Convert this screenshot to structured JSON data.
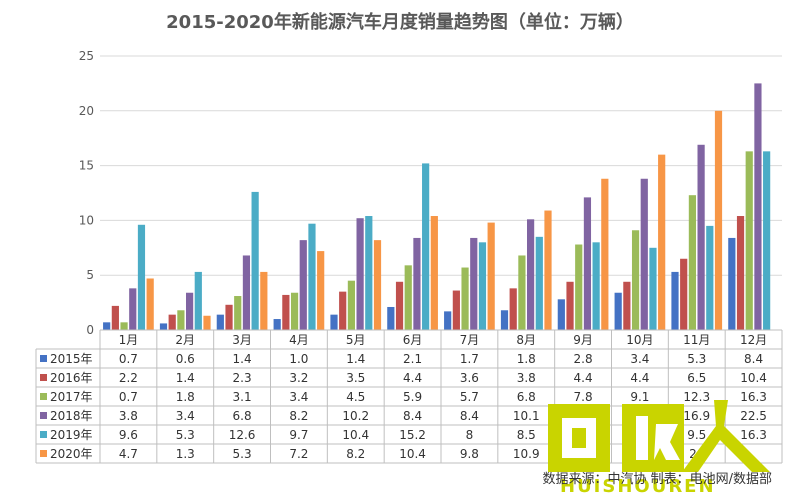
{
  "title": "2015-2020年新能源汽车月度销量趋势图（单位：万辆）",
  "source": "数据来源：中汽协 制表：电池网/数据部",
  "logo_text": "HUISHOUREN",
  "chart_data": {
    "type": "bar",
    "title": "2015-2020年新能源汽车月度销量趋势图（单位：万辆）",
    "xlabel": "",
    "ylabel": "",
    "ylim": [
      0,
      25
    ],
    "yticks": [
      0,
      5,
      10,
      15,
      20,
      25
    ],
    "grid": true,
    "legend": "data-table",
    "categories": [
      "1月",
      "2月",
      "3月",
      "4月",
      "5月",
      "6月",
      "7月",
      "8月",
      "9月",
      "10月",
      "11月",
      "12月"
    ],
    "series": [
      {
        "name": "2015年",
        "color": "#4472c4",
        "values": [
          0.7,
          0.6,
          1.4,
          1.0,
          1.4,
          2.1,
          1.7,
          1.8,
          2.8,
          3.4,
          5.3,
          8.4
        ]
      },
      {
        "name": "2016年",
        "color": "#c0504d",
        "values": [
          2.2,
          1.4,
          2.3,
          3.2,
          3.5,
          4.4,
          3.6,
          3.8,
          4.4,
          4.4,
          6.5,
          10.4
        ]
      },
      {
        "name": "2017年",
        "color": "#9bbb59",
        "values": [
          0.7,
          1.8,
          3.1,
          3.4,
          4.5,
          5.9,
          5.7,
          6.8,
          7.8,
          9.1,
          12.3,
          16.3
        ]
      },
      {
        "name": "2018年",
        "color": "#8064a2",
        "values": [
          3.8,
          3.4,
          6.8,
          8.2,
          10.2,
          8.4,
          8.4,
          10.1,
          12.1,
          13.8,
          16.9,
          22.5
        ]
      },
      {
        "name": "2019年",
        "color": "#4bacc6",
        "values": [
          9.6,
          5.3,
          12.6,
          9.7,
          10.4,
          15.2,
          8,
          8.5,
          8.0,
          7.5,
          9.5,
          16.3
        ]
      },
      {
        "name": "2020年",
        "color": "#f79646",
        "values": [
          4.7,
          1.3,
          5.3,
          7.2,
          8.2,
          10.4,
          9.8,
          10.9,
          13.8,
          16.0,
          20.0,
          null
        ]
      }
    ],
    "table_cells": [
      [
        "0.7",
        "0.6",
        "1.4",
        "1.0",
        "1.4",
        "2.1",
        "1.7",
        "1.8",
        "2.8",
        "3.4",
        "5.3",
        "8.4"
      ],
      [
        "2.2",
        "1.4",
        "2.3",
        "3.2",
        "3.5",
        "4.4",
        "3.6",
        "3.8",
        "4.4",
        "4.4",
        "6.5",
        "10.4"
      ],
      [
        "0.7",
        "1.8",
        "3.1",
        "3.4",
        "4.5",
        "5.9",
        "5.7",
        "6.8",
        "7.8",
        "9.1",
        "12.3",
        "16.3"
      ],
      [
        "3.8",
        "3.4",
        "6.8",
        "8.2",
        "10.2",
        "8.4",
        "8.4",
        "10.1",
        "",
        "",
        "16.9",
        "22.5"
      ],
      [
        "9.6",
        "5.3",
        "12.6",
        "9.7",
        "10.4",
        "15.2",
        "8",
        "8.5",
        "",
        "",
        "9.5",
        "16.3"
      ],
      [
        "4.7",
        "1.3",
        "5.3",
        "7.2",
        "8.2",
        "10.4",
        "9.8",
        "10.9",
        "",
        "",
        "20",
        ""
      ]
    ]
  }
}
